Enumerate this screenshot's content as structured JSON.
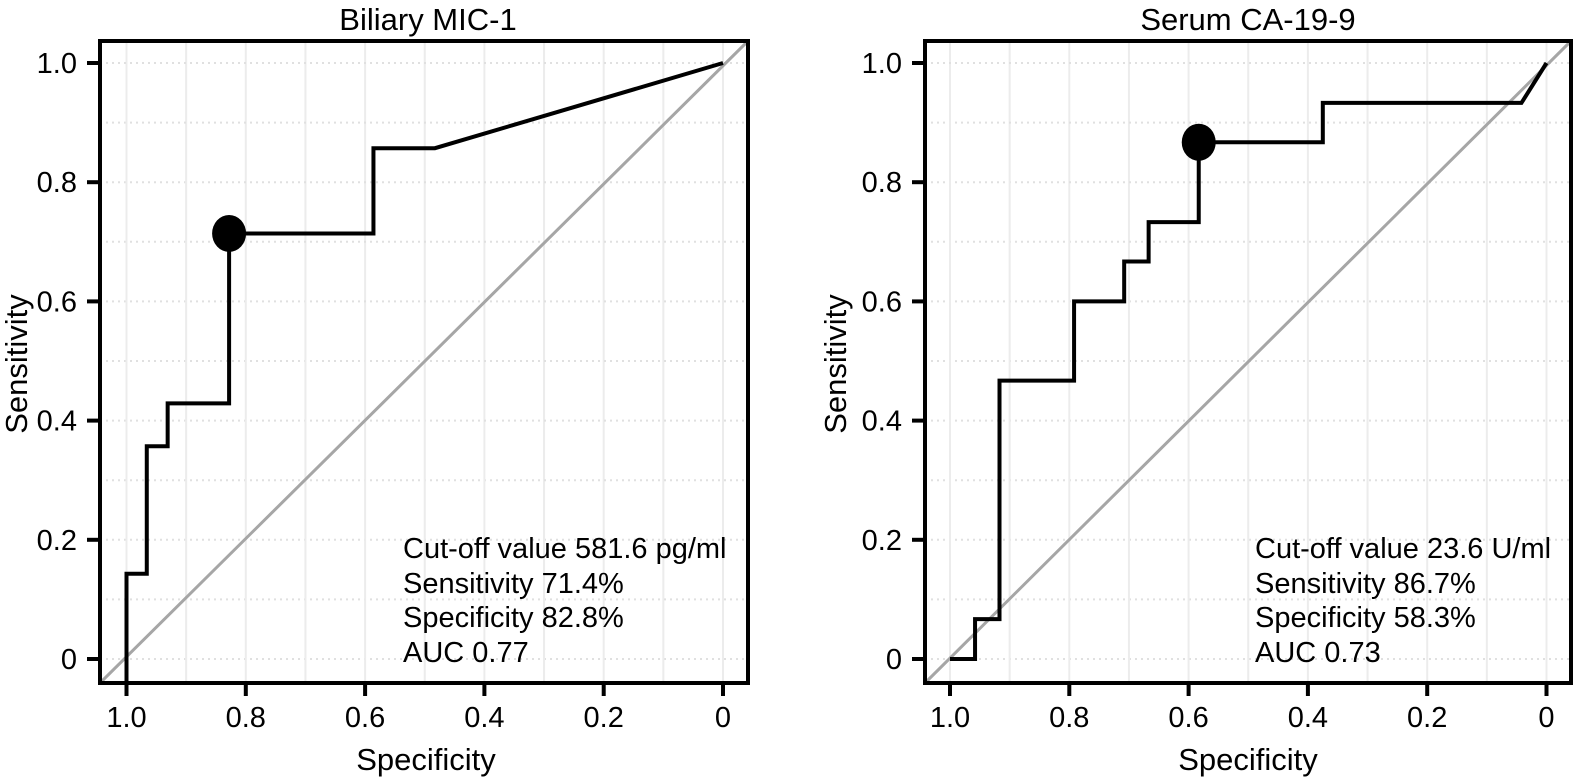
{
  "figure": {
    "background": "#ffffff",
    "colors": {
      "curve": "#000000",
      "marker": "#000000",
      "reference_line": "#a6a6a6",
      "grid_vertical": "#ececec",
      "grid_horizontal": "#e0e0e0",
      "box": "#000000",
      "text": "#000000"
    },
    "axes": {
      "x_label": "Specificity",
      "y_label": "Sensitivity",
      "x_ticks": [
        "1.0",
        "0.8",
        "0.6",
        "0.4",
        "0.2",
        "0"
      ],
      "x_tick_values": [
        1.0,
        0.8,
        0.6,
        0.4,
        0.2,
        0
      ],
      "y_ticks": [
        "0",
        "0.2",
        "0.4",
        "0.6",
        "0.8",
        "1.0"
      ],
      "y_tick_values": [
        0,
        0.2,
        0.4,
        0.6,
        0.8,
        1.0
      ],
      "x_reversed": true,
      "grid_step": 0.1,
      "grid": true
    }
  },
  "chart_data": [
    {
      "type": "line",
      "subtype": "roc_step_curve",
      "title": "Biliary MIC-1",
      "xlabel": "Specificity",
      "ylabel": "Sensitivity",
      "xlim": [
        1.0,
        0.0
      ],
      "ylim": [
        0.0,
        1.0
      ],
      "grid": true,
      "reference_diagonal": true,
      "roc_points": [
        [
          1.0,
          0.0
        ],
        [
          1.0,
          0.143
        ],
        [
          0.966,
          0.143
        ],
        [
          0.966,
          0.357
        ],
        [
          0.931,
          0.357
        ],
        [
          0.931,
          0.429
        ],
        [
          0.828,
          0.429
        ],
        [
          0.828,
          0.714
        ],
        [
          0.586,
          0.714
        ],
        [
          0.586,
          0.857
        ],
        [
          0.483,
          0.857
        ],
        [
          0.0,
          1.0
        ]
      ],
      "cutoff_point": {
        "specificity": 0.828,
        "sensitivity": 0.714
      },
      "cutoff_value": "581.6 pg/ml",
      "sensitivity_pct": "71.4%",
      "specificity_pct": "82.8%",
      "auc": 0.77,
      "annotation": [
        "Cut-off value 581.6 pg/ml",
        "Sensitivity 71.4%",
        "Specificity 82.8%",
        "AUC 0.77"
      ]
    },
    {
      "type": "line",
      "subtype": "roc_step_curve",
      "title": "Serum CA-19-9",
      "xlabel": "Specificity",
      "ylabel": "Sensitivity",
      "xlim": [
        1.0,
        0.0
      ],
      "ylim": [
        0.0,
        1.0
      ],
      "grid": true,
      "reference_diagonal": true,
      "roc_points": [
        [
          1.0,
          0.0
        ],
        [
          0.958,
          0.0
        ],
        [
          0.958,
          0.067
        ],
        [
          0.917,
          0.067
        ],
        [
          0.917,
          0.467
        ],
        [
          0.792,
          0.467
        ],
        [
          0.792,
          0.6
        ],
        [
          0.708,
          0.6
        ],
        [
          0.708,
          0.667
        ],
        [
          0.667,
          0.667
        ],
        [
          0.667,
          0.733
        ],
        [
          0.583,
          0.733
        ],
        [
          0.583,
          0.867
        ],
        [
          0.375,
          0.867
        ],
        [
          0.375,
          0.933
        ],
        [
          0.042,
          0.933
        ],
        [
          0.0,
          1.0
        ]
      ],
      "cutoff_point": {
        "specificity": 0.583,
        "sensitivity": 0.867
      },
      "cutoff_value": "23.6 U/ml",
      "sensitivity_pct": "86.7%",
      "specificity_pct": "58.3%",
      "auc": 0.73,
      "annotation": [
        "Cut-off value 23.6 U/ml",
        "Sensitivity 86.7%",
        "Specificity 58.3%",
        "AUC 0.73"
      ]
    }
  ]
}
